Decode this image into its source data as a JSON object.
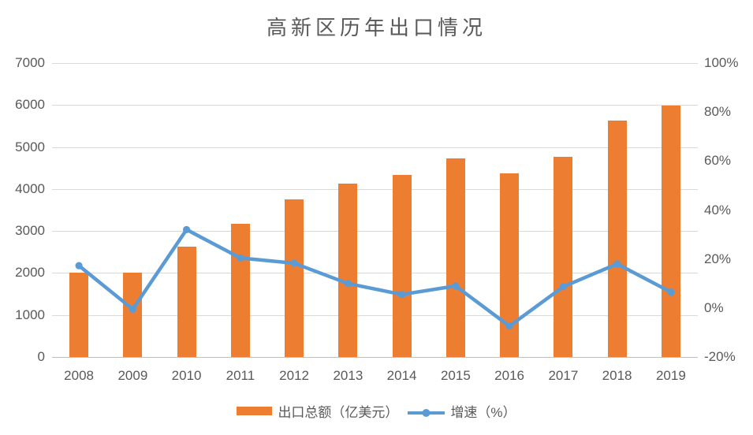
{
  "chart_data": {
    "type": "bar+line",
    "title": "高新区历年出口情况",
    "categories": [
      "2008",
      "2009",
      "2010",
      "2011",
      "2012",
      "2013",
      "2014",
      "2015",
      "2016",
      "2017",
      "2018",
      "2019"
    ],
    "series": [
      {
        "name": "出口总额（亿美元）",
        "type": "bar",
        "axis": "left",
        "values": [
          2000,
          2000,
          2630,
          3170,
          3750,
          4130,
          4330,
          4730,
          4380,
          4770,
          5630,
          5990
        ]
      },
      {
        "name": "增速（%）",
        "type": "line",
        "axis": "right",
        "values": [
          17.3,
          -0.5,
          32,
          20.4,
          18.3,
          10,
          5.5,
          9,
          -7.4,
          8.7,
          18,
          6.5
        ]
      }
    ],
    "left_axis": {
      "min": 0,
      "max": 7000,
      "step": 1000,
      "tick_labels": [
        "0",
        "1000",
        "2000",
        "3000",
        "4000",
        "5000",
        "6000",
        "7000"
      ]
    },
    "right_axis": {
      "min": -20,
      "max": 100,
      "step": 20,
      "tick_labels": [
        "-20%",
        "0%",
        "20%",
        "40%",
        "60%",
        "80%",
        "100%"
      ]
    },
    "grid": true,
    "legend_position": "bottom"
  },
  "legend": {
    "items": [
      {
        "label": "出口总额（亿美元）",
        "marker": "bar"
      },
      {
        "label": "增速（%）",
        "marker": "line"
      }
    ]
  },
  "colors": {
    "bar": "#ED7D31",
    "line": "#5B9BD5",
    "grid": "#D9D9D9",
    "axis_line": "#BFBFBF",
    "text": "#595959",
    "background": "#FFFFFF"
  }
}
